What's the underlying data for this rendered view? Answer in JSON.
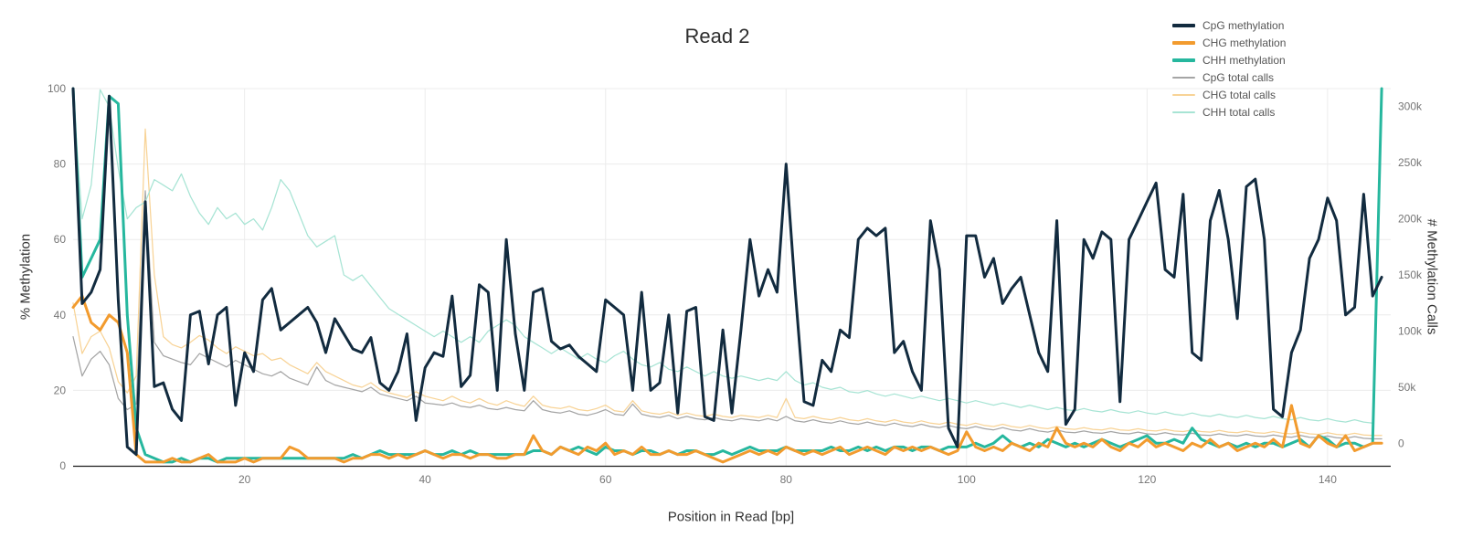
{
  "title": {
    "text": "Read 2"
  },
  "axes": {
    "x": {
      "label": "Position in Read [bp]",
      "range": [
        1,
        147
      ],
      "ticks": [
        20,
        40,
        60,
        80,
        100,
        120,
        140
      ]
    },
    "y_left": {
      "label": "% Methylation",
      "range": [
        0,
        100
      ],
      "ticks": [
        0,
        20,
        40,
        60,
        80,
        100
      ]
    },
    "y_right": {
      "label": "# Methylation Calls",
      "range": [
        -20000,
        316000
      ],
      "ticks": [
        0,
        50000,
        100000,
        150000,
        200000,
        250000,
        300000
      ],
      "tick_labels": [
        "0",
        "50k",
        "100k",
        "150k",
        "200k",
        "250k",
        "300k"
      ]
    }
  },
  "legend": {
    "position": "top-right"
  },
  "chart_data": {
    "type": "line",
    "title": "Read 2",
    "xlabel": "Position in Read [bp]",
    "ylabel_left": "% Methylation",
    "ylabel_right": "# Methylation Calls",
    "x_range": [
      1,
      147
    ],
    "y_left_range": [
      0,
      100
    ],
    "y_right_range": [
      -20000,
      316000
    ],
    "grid": true,
    "x": [
      1,
      2,
      3,
      4,
      5,
      6,
      7,
      8,
      9,
      10,
      11,
      12,
      13,
      14,
      15,
      16,
      17,
      18,
      19,
      20,
      21,
      22,
      23,
      24,
      25,
      26,
      27,
      28,
      29,
      30,
      31,
      32,
      33,
      34,
      35,
      36,
      37,
      38,
      39,
      40,
      41,
      42,
      43,
      44,
      45,
      46,
      47,
      48,
      49,
      50,
      51,
      52,
      53,
      54,
      55,
      56,
      57,
      58,
      59,
      60,
      61,
      62,
      63,
      64,
      65,
      66,
      67,
      68,
      69,
      70,
      71,
      72,
      73,
      74,
      75,
      76,
      77,
      78,
      79,
      80,
      81,
      82,
      83,
      84,
      85,
      86,
      87,
      88,
      89,
      90,
      91,
      92,
      93,
      94,
      95,
      96,
      97,
      98,
      99,
      100,
      101,
      102,
      103,
      104,
      105,
      106,
      107,
      108,
      109,
      110,
      111,
      112,
      113,
      114,
      115,
      116,
      117,
      118,
      119,
      120,
      121,
      122,
      123,
      124,
      125,
      126,
      127,
      128,
      129,
      130,
      131,
      132,
      133,
      134,
      135,
      136,
      137,
      138,
      139,
      140,
      141,
      142,
      143,
      144,
      145,
      146
    ],
    "series": [
      {
        "name": "CpG methylation",
        "axis": "left",
        "color": "#122b3f",
        "width": 3,
        "values": [
          100,
          43,
          46,
          52,
          98,
          44,
          5,
          3,
          70,
          21,
          22,
          15,
          12,
          40,
          41,
          27,
          40,
          42,
          16,
          30,
          25,
          44,
          47,
          36,
          38,
          40,
          42,
          38,
          30,
          39,
          35,
          31,
          30,
          34,
          22,
          20,
          25,
          35,
          12,
          26,
          30,
          29,
          45,
          21,
          24,
          48,
          46,
          20,
          60,
          35,
          20,
          46,
          47,
          33,
          31,
          32,
          29,
          27,
          25,
          44,
          42,
          40,
          20,
          46,
          20,
          22,
          40,
          14,
          41,
          42,
          13,
          12,
          36,
          14,
          36,
          60,
          45,
          52,
          46,
          80,
          47,
          17,
          16,
          28,
          25,
          36,
          34,
          60,
          63,
          61,
          63,
          30,
          33,
          25,
          20,
          65,
          52,
          10,
          5,
          61,
          61,
          50,
          55,
          43,
          47,
          50,
          40,
          30,
          25,
          65,
          11,
          15,
          60,
          55,
          62,
          60,
          17,
          60,
          65,
          70,
          75,
          52,
          50,
          72,
          30,
          28,
          65,
          73,
          60,
          39,
          74,
          76,
          60,
          15,
          13,
          30,
          36,
          55,
          60,
          71,
          65,
          40,
          42,
          72,
          45,
          50
        ]
      },
      {
        "name": "CHG methylation",
        "axis": "left",
        "color": "#f29b2e",
        "width": 3,
        "values": [
          42,
          45,
          38,
          36,
          40,
          38,
          30,
          3,
          1,
          1,
          1,
          2,
          1,
          1,
          2,
          3,
          1,
          1,
          1,
          2,
          1,
          2,
          2,
          2,
          5,
          4,
          2,
          2,
          2,
          2,
          1,
          2,
          2,
          3,
          3,
          2,
          3,
          2,
          3,
          4,
          3,
          2,
          3,
          3,
          2,
          3,
          3,
          2,
          2,
          3,
          3,
          8,
          4,
          3,
          5,
          4,
          3,
          5,
          4,
          6,
          3,
          4,
          3,
          5,
          3,
          3,
          4,
          3,
          3,
          4,
          3,
          2,
          1,
          2,
          3,
          4,
          3,
          4,
          3,
          5,
          4,
          3,
          4,
          3,
          4,
          5,
          3,
          4,
          5,
          4,
          3,
          5,
          4,
          5,
          4,
          5,
          4,
          3,
          4,
          9,
          5,
          4,
          5,
          4,
          6,
          5,
          4,
          6,
          5,
          10,
          6,
          5,
          6,
          5,
          7,
          5,
          4,
          6,
          5,
          7,
          5,
          6,
          5,
          4,
          6,
          5,
          7,
          5,
          6,
          4,
          5,
          6,
          5,
          7,
          5,
          16,
          6,
          5,
          8,
          6,
          5,
          8,
          4,
          5,
          6,
          6
        ]
      },
      {
        "name": "CHH methylation",
        "axis": "left",
        "color": "#26b79e",
        "width": 3,
        "values": [
          100,
          50,
          55,
          60,
          98,
          96,
          40,
          10,
          3,
          2,
          1,
          1,
          2,
          1,
          2,
          2,
          1,
          2,
          2,
          2,
          2,
          2,
          2,
          2,
          2,
          2,
          2,
          2,
          2,
          2,
          2,
          3,
          2,
          3,
          4,
          3,
          3,
          3,
          3,
          4,
          3,
          3,
          4,
          3,
          4,
          3,
          3,
          3,
          3,
          3,
          3,
          4,
          4,
          3,
          5,
          4,
          5,
          4,
          3,
          5,
          4,
          4,
          3,
          4,
          4,
          3,
          4,
          3,
          4,
          4,
          3,
          3,
          4,
          3,
          4,
          5,
          4,
          4,
          4,
          5,
          4,
          4,
          4,
          4,
          5,
          4,
          4,
          5,
          4,
          5,
          4,
          5,
          5,
          4,
          5,
          5,
          4,
          5,
          5,
          5,
          6,
          5,
          6,
          8,
          6,
          5,
          6,
          5,
          7,
          6,
          5,
          6,
          5,
          6,
          7,
          6,
          5,
          6,
          7,
          8,
          6,
          6,
          7,
          6,
          10,
          7,
          6,
          5,
          6,
          5,
          6,
          5,
          6,
          6,
          5,
          6,
          7,
          5,
          8,
          7,
          5,
          6,
          6,
          5,
          6,
          100
        ]
      },
      {
        "name": "CpG total calls",
        "axis": "right",
        "color": "#a5a5a5",
        "width": 1.25,
        "values": [
          95000,
          60000,
          75000,
          82000,
          70000,
          40000,
          30000,
          35000,
          225000,
          90000,
          78000,
          75000,
          72000,
          70000,
          80000,
          76000,
          72000,
          68000,
          74000,
          70000,
          66000,
          62000,
          60000,
          64000,
          58000,
          55000,
          52000,
          68000,
          56000,
          52000,
          50000,
          48000,
          46000,
          50000,
          44000,
          42000,
          40000,
          38000,
          42000,
          36000,
          35000,
          34000,
          36000,
          33000,
          32000,
          34000,
          31000,
          30000,
          32000,
          30000,
          29000,
          38000,
          30000,
          28000,
          27000,
          29000,
          26000,
          25000,
          27000,
          30000,
          26000,
          25000,
          35000,
          26000,
          24000,
          23000,
          25000,
          22000,
          24000,
          22000,
          21000,
          23000,
          21000,
          20000,
          22000,
          21000,
          20000,
          22000,
          20000,
          24000,
          20000,
          19000,
          21000,
          19000,
          18000,
          20000,
          18000,
          17000,
          19000,
          17000,
          16000,
          18000,
          16000,
          15000,
          17000,
          15000,
          14000,
          16000,
          14000,
          13000,
          15000,
          13000,
          12000,
          14000,
          12000,
          11000,
          13000,
          11000,
          10000,
          12000,
          10000,
          9500,
          11000,
          9500,
          9000,
          10500,
          9000,
          8500,
          10000,
          8500,
          8000,
          9500,
          8000,
          7500,
          9000,
          7500,
          7000,
          8500,
          7000,
          6500,
          8000,
          6500,
          6000,
          7500,
          6000,
          5500,
          7000,
          5500,
          5000,
          6500,
          5000,
          4500,
          6000,
          4500,
          4000,
          4000
        ]
      },
      {
        "name": "CHG total calls",
        "axis": "right",
        "color": "#f8d396",
        "width": 1.25,
        "values": [
          125000,
          80000,
          95000,
          100000,
          85000,
          55000,
          45000,
          60000,
          280000,
          150000,
          95000,
          88000,
          85000,
          90000,
          96000,
          92000,
          85000,
          80000,
          86000,
          82000,
          78000,
          80000,
          74000,
          76000,
          70000,
          66000,
          62000,
          72000,
          64000,
          60000,
          56000,
          52000,
          50000,
          54000,
          48000,
          45000,
          43000,
          41000,
          46000,
          42000,
          40000,
          38000,
          42000,
          38000,
          36000,
          40000,
          36000,
          34000,
          38000,
          35000,
          33000,
          42000,
          34000,
          32000,
          31000,
          33000,
          30000,
          29000,
          31000,
          34000,
          29000,
          28000,
          38000,
          29000,
          27000,
          26000,
          28000,
          25000,
          27000,
          25000,
          24000,
          26000,
          24000,
          23000,
          25000,
          24000,
          23000,
          25000,
          23000,
          40000,
          23000,
          22000,
          24000,
          22000,
          21000,
          23000,
          21000,
          20000,
          22000,
          20000,
          19000,
          21000,
          19000,
          18000,
          20000,
          18000,
          17000,
          19000,
          17000,
          16000,
          18000,
          16000,
          15000,
          17000,
          15000,
          14000,
          16000,
          14000,
          13000,
          15000,
          13000,
          12500,
          14000,
          12500,
          12000,
          13500,
          12000,
          11500,
          13000,
          11500,
          11000,
          12500,
          11000,
          10500,
          12000,
          10500,
          10000,
          11500,
          10000,
          9500,
          11000,
          9500,
          9000,
          10500,
          9000,
          8500,
          10000,
          8500,
          8000,
          9500,
          8000,
          7500,
          9000,
          7500,
          7000,
          7000
        ]
      },
      {
        "name": "CHH total calls",
        "axis": "right",
        "color": "#a7e4d4",
        "width": 1.25,
        "values": [
          310000,
          200000,
          230000,
          315000,
          300000,
          245000,
          200000,
          210000,
          215000,
          235000,
          230000,
          225000,
          240000,
          220000,
          205000,
          195000,
          210000,
          200000,
          205000,
          195000,
          200000,
          190000,
          210000,
          235000,
          225000,
          205000,
          185000,
          175000,
          180000,
          185000,
          150000,
          145000,
          150000,
          140000,
          130000,
          120000,
          115000,
          110000,
          105000,
          100000,
          95000,
          100000,
          95000,
          90000,
          95000,
          90000,
          100000,
          105000,
          110000,
          105000,
          95000,
          90000,
          85000,
          80000,
          85000,
          80000,
          75000,
          80000,
          75000,
          72000,
          78000,
          82000,
          75000,
          70000,
          68000,
          72000,
          66000,
          64000,
          68000,
          64000,
          60000,
          64000,
          60000,
          58000,
          60000,
          58000,
          56000,
          58000,
          56000,
          64000,
          56000,
          52000,
          54000,
          50000,
          48000,
          50000,
          46000,
          45000,
          47000,
          44000,
          42000,
          44000,
          42000,
          40000,
          42000,
          40000,
          38000,
          40000,
          38000,
          36000,
          38000,
          36000,
          34000,
          36000,
          34000,
          32000,
          34000,
          32000,
          30000,
          32000,
          30000,
          29000,
          31000,
          29000,
          28000,
          30000,
          28000,
          27000,
          29000,
          27000,
          26000,
          28000,
          26000,
          25000,
          27000,
          25000,
          24000,
          26000,
          24000,
          23000,
          25000,
          23000,
          22000,
          24000,
          22000,
          21000,
          23000,
          21000,
          20000,
          22000,
          20000,
          19000,
          21000,
          19000,
          18000,
          310000
        ]
      }
    ]
  }
}
